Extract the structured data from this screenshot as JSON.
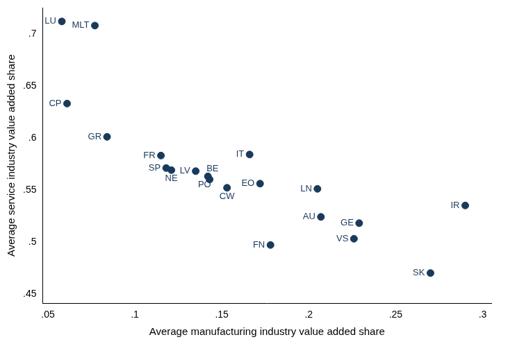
{
  "chart_data": {
    "type": "scatter",
    "x_label": "Average manufacturing industry value added share",
    "y_label": "Average service industry value added share",
    "point_labels": [
      "LU",
      "MLT",
      "CP",
      "GR",
      "FR",
      "SP",
      "NE",
      "LV",
      "BE",
      "PO",
      "CW",
      "IT",
      "EO",
      "LN",
      "AU",
      "GE",
      "VS",
      "FN",
      "IR",
      "SK"
    ],
    "x": [
      0.058,
      0.077,
      0.061,
      0.084,
      0.115,
      0.118,
      0.121,
      0.135,
      0.142,
      0.143,
      0.153,
      0.166,
      0.172,
      0.205,
      0.207,
      0.229,
      0.226,
      0.178,
      0.29,
      0.27
    ],
    "values": [
      0.712,
      0.708,
      0.633,
      0.601,
      0.583,
      0.571,
      0.569,
      0.568,
      0.563,
      0.56,
      0.552,
      0.584,
      0.556,
      0.551,
      0.524,
      0.518,
      0.503,
      0.497,
      0.535,
      0.47
    ],
    "color": "#1a3a5c",
    "xlim": [
      0.047,
      0.305
    ],
    "ylim": [
      0.441,
      0.725
    ],
    "xticks": [
      {
        "value": 0.05,
        "label": ".05"
      },
      {
        "value": 0.1,
        "label": ".1"
      },
      {
        "value": 0.15,
        "label": ".15"
      },
      {
        "value": 0.2,
        "label": ".2"
      },
      {
        "value": 0.25,
        "label": ".25"
      },
      {
        "value": 0.3,
        "label": ".3"
      }
    ],
    "yticks": [
      {
        "value": 0.45,
        "label": ".45"
      },
      {
        "value": 0.5,
        "label": ".5"
      },
      {
        "value": 0.55,
        "label": ".55"
      },
      {
        "value": 0.6,
        "label": ".6"
      },
      {
        "value": 0.65,
        "label": ".65"
      },
      {
        "value": 0.7,
        "label": ".7"
      }
    ],
    "grid": false
  }
}
